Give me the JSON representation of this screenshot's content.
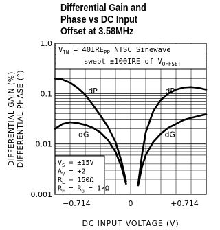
{
  "chart_data": {
    "type": "line",
    "title": [
      "Differential Gain and",
      "Phase vs DC Input",
      "Offset at 3.58MHz"
    ],
    "xlabel": "DC INPUT VOLTAGE (V)",
    "ylabel": [
      "DIFFERENTIAL GAIN (%)",
      "DIFFERENTIAL PHASE (°)"
    ],
    "xlim": [
      -1.0,
      1.0
    ],
    "ylim": [
      0.001,
      1.0
    ],
    "yscale": "log",
    "xticks": [
      {
        "value": -0.714,
        "label": "−0.714"
      },
      {
        "value": 0,
        "label": "0"
      },
      {
        "value": 0.714,
        "label": "+0.714"
      }
    ],
    "yticks": [
      {
        "value": 1.0,
        "label": "1.0"
      },
      {
        "value": 0.1,
        "label": "0.1"
      },
      {
        "value": 0.01,
        "label": "0.01"
      },
      {
        "value": 0.001,
        "label": "0.001"
      }
    ],
    "grid": true,
    "conditions_box": [
      "VIN = 40IREPP NTSC Sinewave",
      "swept ±100IRE of VOFFSET"
    ],
    "conditions_box_rich": [
      [
        {
          "t": "V"
        },
        {
          "t": "IN",
          "sub": true
        },
        {
          "t": " = 40IRE"
        },
        {
          "t": "PP",
          "sub": true
        },
        {
          "t": " NTSC Sinewave"
        }
      ],
      [
        {
          "t": "swept ±100IRE of V"
        },
        {
          "t": "OFFSET",
          "sub": true
        }
      ]
    ],
    "params_box": [
      "VS = ±15V",
      "AV = +2",
      "RL = 150Ω",
      "RF = RG = 1kΩ"
    ],
    "params_box_rich": [
      [
        {
          "t": "V"
        },
        {
          "t": "S",
          "sub": true
        },
        {
          "t": " = ±15V"
        }
      ],
      [
        {
          "t": "A"
        },
        {
          "t": "V",
          "sub": true
        },
        {
          "t": " = +2"
        }
      ],
      [
        {
          "t": "R"
        },
        {
          "t": "L",
          "sub": true
        },
        {
          "t": " = 150Ω"
        }
      ],
      [
        {
          "t": "R"
        },
        {
          "t": "F",
          "sub": true
        },
        {
          "t": " = R"
        },
        {
          "t": "G",
          "sub": true
        },
        {
          "t": " = 1kΩ"
        }
      ]
    ],
    "series": [
      {
        "name": "dP",
        "points": [
          [
            -1.0,
            0.2
          ],
          [
            -0.9,
            0.19
          ],
          [
            -0.8,
            0.165
          ],
          [
            -0.7,
            0.13
          ],
          [
            -0.6,
            0.095
          ],
          [
            -0.5,
            0.06
          ],
          [
            -0.4,
            0.037
          ],
          [
            -0.3,
            0.022
          ],
          [
            -0.2,
            0.011
          ],
          [
            -0.12,
            0.0045
          ],
          [
            -0.06,
            0.0018
          ]
        ]
      },
      {
        "name": "dG",
        "points": [
          [
            -1.0,
            0.02
          ],
          [
            -0.9,
            0.025
          ],
          [
            -0.8,
            0.027
          ],
          [
            -0.7,
            0.026
          ],
          [
            -0.6,
            0.024
          ],
          [
            -0.5,
            0.021
          ],
          [
            -0.4,
            0.017
          ],
          [
            -0.3,
            0.012
          ],
          [
            -0.2,
            0.007
          ],
          [
            -0.12,
            0.0035
          ],
          [
            -0.06,
            0.0016
          ]
        ]
      },
      {
        "name": "dP",
        "points": [
          [
            0.1,
            0.0016
          ],
          [
            0.15,
            0.006
          ],
          [
            0.2,
            0.017
          ],
          [
            0.3,
            0.045
          ],
          [
            0.4,
            0.075
          ],
          [
            0.5,
            0.1
          ],
          [
            0.6,
            0.12
          ],
          [
            0.7,
            0.132
          ],
          [
            0.8,
            0.135
          ],
          [
            0.9,
            0.13
          ],
          [
            1.0,
            0.12
          ]
        ]
      },
      {
        "name": "dG",
        "points": [
          [
            0.1,
            0.0015
          ],
          [
            0.15,
            0.0035
          ],
          [
            0.2,
            0.006
          ],
          [
            0.3,
            0.011
          ],
          [
            0.4,
            0.016
          ],
          [
            0.5,
            0.021
          ],
          [
            0.6,
            0.025
          ],
          [
            0.7,
            0.03
          ],
          [
            0.8,
            0.033
          ],
          [
            0.9,
            0.036
          ],
          [
            1.0,
            0.039
          ]
        ]
      }
    ],
    "curve_labels": [
      {
        "text": "dP",
        "x": -0.5,
        "y": 0.115
      },
      {
        "text": "dG",
        "x": -0.62,
        "y": 0.0155
      },
      {
        "text": "dP",
        "x": 0.52,
        "y": 0.115
      },
      {
        "text": "dG",
        "x": 0.52,
        "y": 0.0155
      }
    ]
  }
}
